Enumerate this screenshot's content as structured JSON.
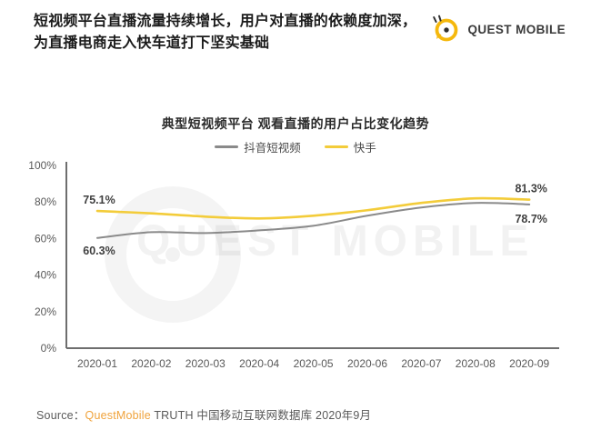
{
  "header": {
    "title": "短视频平台直播流量持续增长，用户对直播的依赖度加深，为直播电商走入快车道打下坚实基础",
    "logo_text": "QUEST MOBILE"
  },
  "watermark": {
    "text": "QUEST MOBILE"
  },
  "source": {
    "prefix": "Source：",
    "brand": "QuestMobile",
    "suffix": " TRUTH 中国移动互联网数据库 2020年9月"
  },
  "colors": {
    "brand_yellow": "#F5B80C",
    "line_gray": "#8a8a8a",
    "line_yellow": "#F3CC3A",
    "axis": "#6e6e6e",
    "source_brand_orange": "#F0A33C"
  },
  "chart_data": {
    "type": "line",
    "title": "典型短视频平台 观看直播的用户占比变化趋势",
    "categories": [
      "2020-01",
      "2020-02",
      "2020-03",
      "2020-04",
      "2020-05",
      "2020-06",
      "2020-07",
      "2020-08",
      "2020-09"
    ],
    "series": [
      {
        "name": "抖音短视频",
        "color": "#8a8a8a",
        "width": 2,
        "label_side": "below",
        "first_label": "60.3%",
        "last_label": "78.7%",
        "values": [
          60.3,
          63.5,
          63.0,
          64.5,
          67.0,
          72.5,
          77.0,
          79.5,
          78.7
        ]
      },
      {
        "name": "快手",
        "color": "#F3CC3A",
        "width": 2.6,
        "label_side": "above",
        "first_label": "75.1%",
        "last_label": "81.3%",
        "values": [
          75.1,
          73.8,
          72.0,
          71.0,
          72.5,
          75.5,
          79.5,
          82.0,
          81.3
        ]
      }
    ],
    "xlabel": "",
    "ylabel": "",
    "ylim": [
      0,
      100
    ],
    "yticks": [
      "0%",
      "20%",
      "40%",
      "60%",
      "80%",
      "100%"
    ],
    "grid": false,
    "legend_position": "top"
  }
}
